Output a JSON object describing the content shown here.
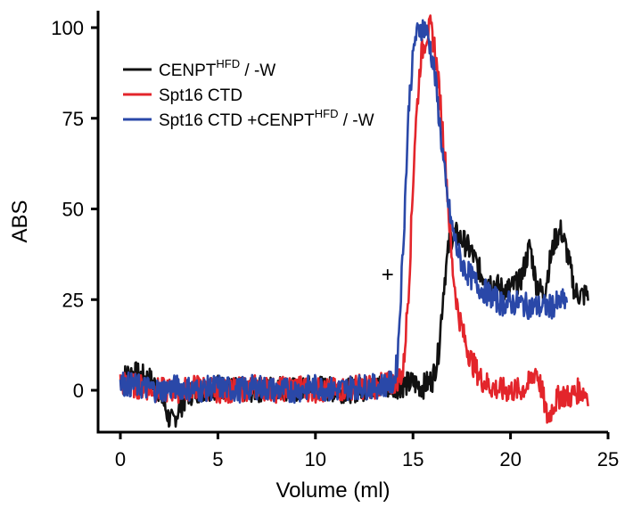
{
  "chart_data": {
    "type": "line",
    "title": "",
    "xlabel": "Volume (ml)",
    "ylabel": "ABS",
    "xlim": [
      0,
      25
    ],
    "ylim": [
      -10,
      105
    ],
    "xticks": [
      "0",
      "5",
      "10",
      "15",
      "20",
      "25"
    ],
    "yticks": [
      "0",
      "25",
      "50",
      "75",
      "100"
    ],
    "grid": false,
    "legend_position": "top-left",
    "annotation": "+",
    "series": [
      {
        "name": "CENPT",
        "name_sup": "HFD",
        "name_suffix": " / -W",
        "color": "#111111",
        "x": [
          0,
          0.5,
          1.0,
          1.5,
          2.0,
          2.5,
          2.7,
          3.0,
          3.5,
          4.0,
          5,
          6,
          7,
          8,
          9,
          10,
          11,
          12,
          13,
          14,
          15,
          15.5,
          16.0,
          16.3,
          16.6,
          16.9,
          17.2,
          17.6,
          18.0,
          18.5,
          19.0,
          19.5,
          20.0,
          20.5,
          21.0,
          21.3,
          21.7,
          22.0,
          22.3,
          22.6,
          22.9,
          23.3,
          23.7,
          24.0
        ],
        "y": [
          3,
          5,
          4,
          3,
          0,
          -8,
          -9,
          -5,
          -1,
          0,
          1,
          0,
          0,
          1,
          0,
          1,
          0,
          0,
          1,
          1,
          2,
          1,
          3,
          10,
          30,
          42,
          43,
          41,
          38,
          32,
          30,
          28,
          28,
          30,
          40,
          30,
          26,
          35,
          42,
          44,
          38,
          27,
          26,
          27
        ]
      },
      {
        "name": "Spt16 CTD",
        "name_sup": "",
        "name_suffix": "",
        "color": "#e3252b",
        "x": [
          0,
          1,
          2,
          3,
          4,
          5,
          6,
          7,
          8,
          9,
          10,
          11,
          12,
          13,
          14,
          14.5,
          14.8,
          15.1,
          15.4,
          15.7,
          15.9,
          16.1,
          16.4,
          16.7,
          17.0,
          17.3,
          17.6,
          18.0,
          18.5,
          19.0,
          19.5,
          20.0,
          20.5,
          21.0,
          21.3,
          21.6,
          21.9,
          22.2,
          22.6,
          23.0,
          23.5,
          24.0
        ],
        "y": [
          2,
          1,
          0,
          0,
          1,
          0,
          0,
          1,
          0,
          1,
          0,
          0,
          1,
          1,
          2,
          5,
          30,
          70,
          92,
          98,
          100,
          95,
          80,
          60,
          35,
          22,
          15,
          8,
          3,
          1,
          0,
          0,
          0,
          2,
          6,
          0,
          -8,
          -4,
          -1,
          -2,
          0,
          -1
        ]
      },
      {
        "name": "Spt16 CTD +CENPT",
        "name_sup": "HFD",
        "name_suffix": " / -W",
        "color": "#2a48a8",
        "x": [
          0,
          1,
          2,
          3,
          4,
          5,
          6,
          7,
          8,
          9,
          10,
          11,
          12,
          13,
          14,
          14.2,
          14.5,
          14.8,
          15.1,
          15.4,
          15.6,
          15.8,
          16.1,
          16.4,
          16.7,
          17.0,
          17.3,
          17.6,
          18.0,
          18.5,
          19.0,
          19.5,
          20.0,
          20.5,
          21.0,
          21.5,
          22.0,
          22.5,
          22.9
        ],
        "y": [
          2,
          1,
          0,
          1,
          0,
          1,
          0,
          1,
          0,
          0,
          1,
          0,
          1,
          1,
          2,
          8,
          40,
          80,
          97,
          100,
          100,
          97,
          88,
          72,
          55,
          45,
          38,
          34,
          31,
          28,
          26,
          24,
          24,
          24,
          23,
          23,
          23,
          24,
          25
        ]
      }
    ]
  }
}
